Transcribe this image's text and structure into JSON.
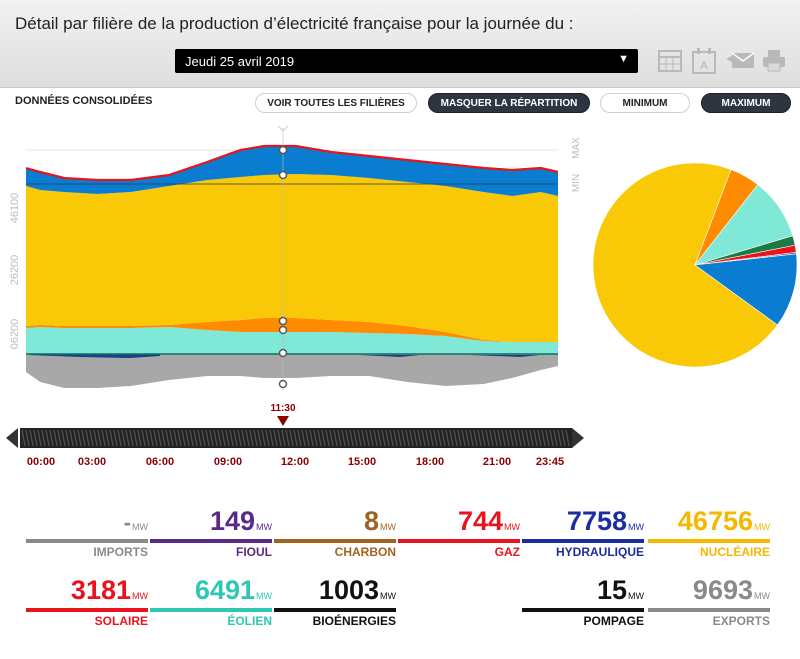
{
  "header": {
    "title": "Détail par filière de la production d’électricité française pour la journée du :",
    "date_value": "Jeudi 25 avril 2019",
    "tools": [
      "calendar-icon",
      "calendar-a-icon",
      "email-icon",
      "print-icon"
    ]
  },
  "subheader": {
    "label": "DONNÉES CONSOLIDÉES",
    "btn_all": "VOIR TOUTES LES FILIÈRES",
    "btn_hide": "MASQUER LA RÉPARTITION",
    "btn_min": "MINIMUM",
    "btn_max": "MAXIMUM"
  },
  "chart_data": {
    "type": "area",
    "y_tick_labels": [
      "06200",
      "26200",
      "46100"
    ],
    "y_side_labels": [
      "MAX",
      "MIN"
    ],
    "marker_time": "11:30",
    "x_tick_labels": [
      "00:00",
      "03:00",
      "06:00",
      "09:00",
      "12:00",
      "15:00",
      "18:00",
      "21:00",
      "23:45"
    ],
    "series_colors": {
      "solaire": "#ff8c00",
      "eolien": "#80e8d6",
      "nucleaire": "#f9c806",
      "hydraulique": "#0b7dd1",
      "gaz": "#e8131c",
      "exports": "#a8a8a8",
      "pompage": "#1b3f8b"
    },
    "pie": [
      {
        "name": "NUCLÉAIRE",
        "value": 46756,
        "color": "#f9c806"
      },
      {
        "name": "SOLAIRE",
        "value": 3181,
        "color": "#ff8c00"
      },
      {
        "name": "ÉOLIEN",
        "value": 6491,
        "color": "#80e8d6"
      },
      {
        "name": "BIOÉNERGIES",
        "value": 1003,
        "color": "#1c7a44"
      },
      {
        "name": "GAZ",
        "value": 744,
        "color": "#e8131c"
      },
      {
        "name": "FIOUL",
        "value": 149,
        "color": "#5b2a86"
      },
      {
        "name": "CHARBON",
        "value": 8,
        "color": "#a0621f"
      },
      {
        "name": "HYDRAULIQUE",
        "value": 7758,
        "color": "#0b7dd1"
      }
    ]
  },
  "stats": [
    {
      "value": "-",
      "unit": "MW",
      "label": "IMPORTS",
      "color": "#8a8a8a",
      "value_color": "#8a8a8a"
    },
    {
      "value": "149",
      "unit": "MW",
      "label": "FIOUL",
      "color": "#5b2a86",
      "value_color": "#5b2a86"
    },
    {
      "value": "8",
      "unit": "MW",
      "label": "CHARBON",
      "color": "#a0621f",
      "value_color": "#a0621f"
    },
    {
      "value": "744",
      "unit": "MW",
      "label": "GAZ",
      "color": "#e8131c",
      "value_color": "#e8131c"
    },
    {
      "value": "7758",
      "unit": "MW",
      "label": "HYDRAULIQUE",
      "color": "#1a2e9e",
      "value_color": "#1a2e9e"
    },
    {
      "value": "46756",
      "unit": "MW",
      "label": "NUCLÉAIRE",
      "color": "#f5b800",
      "value_color": "#f5b800"
    },
    {
      "value": "3181",
      "unit": "MW",
      "label": "SOLAIRE",
      "color": "#e8131c",
      "value_color": "#e8131c"
    },
    {
      "value": "6491",
      "unit": "MW",
      "label": "ÉOLIEN",
      "color": "#2ec7b4",
      "value_color": "#2ec7b4"
    },
    {
      "value": "1003",
      "unit": "MW",
      "label": "BIOÉNERGIES",
      "color": "#111111",
      "value_color": "#111111"
    },
    {
      "value": "15",
      "unit": "MW",
      "label": "POMPAGE",
      "color": "#111111",
      "value_color": "#111111"
    },
    {
      "value": "9693",
      "unit": "MW",
      "label": "EXPORTS",
      "color": "#8a8a8a",
      "value_color": "#8a8a8a"
    }
  ]
}
